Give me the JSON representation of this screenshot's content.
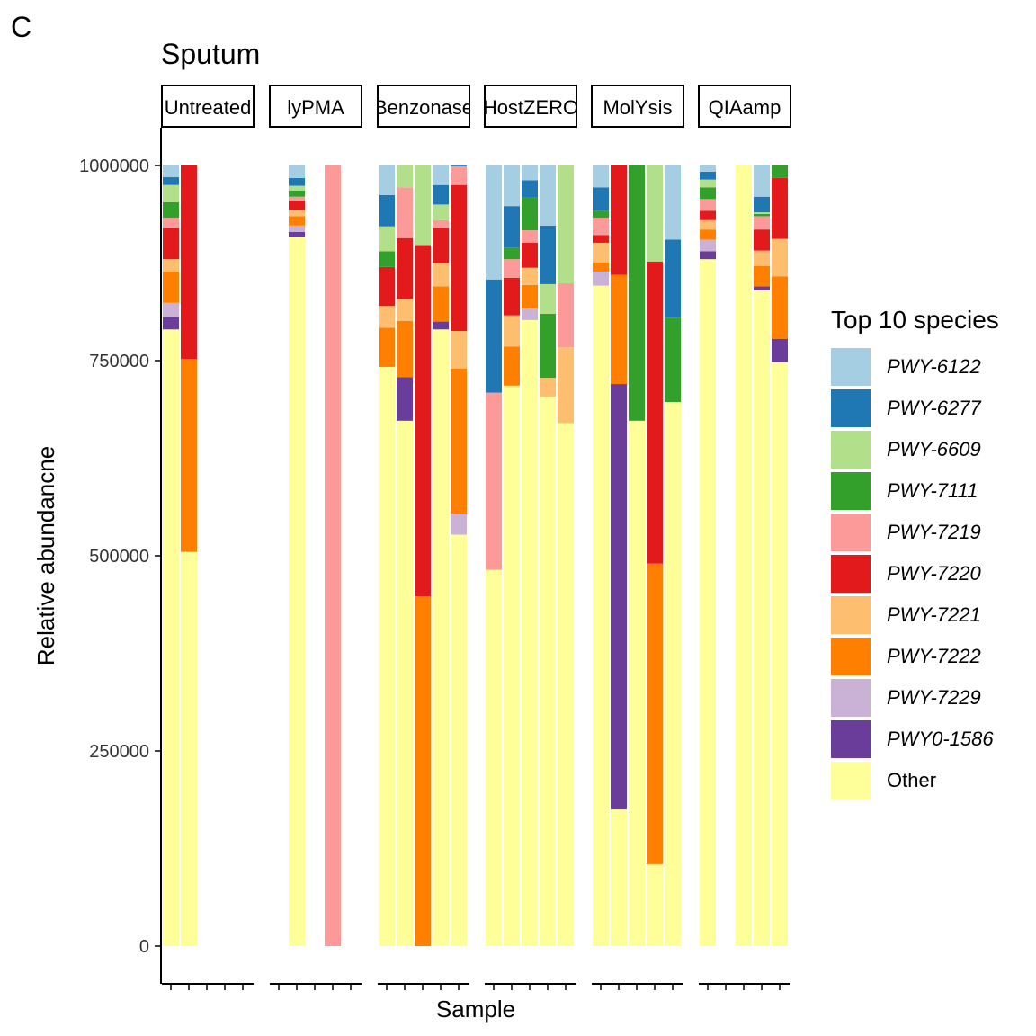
{
  "panel_tag": "C",
  "chart_data": {
    "type": "bar",
    "stacked": true,
    "title": "Sputum",
    "xlabel": "Sample",
    "ylabel": "Relative abundancne",
    "ylim": [
      0,
      1000000
    ],
    "yticks": [
      0,
      250000,
      500000,
      750000,
      1000000
    ],
    "yticklabels": [
      "0",
      "250000",
      "500000",
      "750000",
      "1000000"
    ],
    "legend": {
      "title": "Top 10 species",
      "position": "right"
    },
    "series_order": [
      "PWY-6122",
      "PWY-6277",
      "PWY-6609",
      "PWY-7111",
      "PWY-7219",
      "PWY-7220",
      "PWY-7221",
      "PWY-7222",
      "PWY-7229",
      "PWY0-1586",
      "Other"
    ],
    "colors": {
      "PWY-6122": "#A6CEE3",
      "PWY-6277": "#1F78B4",
      "PWY-6609": "#B2DF8A",
      "PWY-7111": "#33A02C",
      "PWY-7219": "#FB9A99",
      "PWY-7220": "#E31A1C",
      "PWY-7221": "#FDBF6F",
      "PWY-7222": "#FF7F00",
      "PWY-7229": "#CAB2D6",
      "PWY0-1586": "#6A3D9A",
      "Other": "#FFFF99"
    },
    "facets": [
      {
        "name": "Untreated",
        "samples": [
          {
            "Other": 790000,
            "PWY0-1586": 16000,
            "PWY-7229": 18000,
            "PWY-7222": 40000,
            "PWY-7221": 16000,
            "PWY-7220": 40000,
            "PWY-7219": 13000,
            "PWY-7111": 20000,
            "PWY-6609": 22000,
            "PWY-6277": 10000,
            "PWY-6122": 15000
          },
          {
            "Other": 505000,
            "PWY-7222": 247000,
            "PWY-7220": 248000
          },
          null,
          null,
          null
        ]
      },
      {
        "name": "lyPMA",
        "samples": [
          null,
          {
            "Other": 908000,
            "PWY0-1586": 7000,
            "PWY-7229": 8000,
            "PWY-7222": 12000,
            "PWY-7221": 8000,
            "PWY-7220": 12000,
            "PWY-7219": 5000,
            "PWY-7111": 8000,
            "PWY-6609": 6000,
            "PWY-6277": 10000,
            "PWY-6122": 16000
          },
          null,
          {
            "PWY-7219": 1000000
          },
          null
        ]
      },
      {
        "name": "Benzonase",
        "samples": [
          {
            "Other": 742000,
            "PWY-7222": 50000,
            "PWY-7221": 28000,
            "PWY-7220": 50000,
            "PWY-7111": 20000,
            "PWY-6609": 32000,
            "PWY-6277": 40000,
            "PWY-6122": 38000
          },
          {
            "Other": 673000,
            "PWY0-1586": 56000,
            "PWY-7222": 72000,
            "PWY-7221": 28000,
            "PWY-7220": 78000,
            "PWY-7219": 65000,
            "PWY-6609": 28000
          },
          {
            "PWY-7222": 448000,
            "PWY-7220": 450000,
            "PWY-6609": 102000
          },
          {
            "Other": 790000,
            "PWY0-1586": 10000,
            "PWY-7222": 45000,
            "PWY-7221": 30000,
            "PWY-7220": 45000,
            "PWY-7219": 10000,
            "PWY-6609": 20000,
            "PWY-6277": 25000,
            "PWY-6122": 25000
          },
          {
            "Other": 527000,
            "PWY-7229": 27000,
            "PWY-7222": 186000,
            "PWY-7221": 48000,
            "PWY-7220": 187000,
            "PWY-6277": 1000,
            "PWY-7219": 24000
          }
        ]
      },
      {
        "name": "HostZERO",
        "samples": [
          {
            "Other": 482000,
            "PWY-7219": 227000,
            "PWY-6277": 145000,
            "PWY-6122": 146000
          },
          {
            "Other": 718000,
            "PWY-7222": 50000,
            "PWY-7221": 40000,
            "PWY-7220": 48000,
            "PWY-7219": 24000,
            "PWY-7111": 15000,
            "PWY-6277": 53000,
            "PWY-6122": 52000
          },
          {
            "Other": 802000,
            "PWY-7229": 15000,
            "PWY-7222": 30000,
            "PWY-7221": 22000,
            "PWY-7220": 32000,
            "PWY-7219": 16000,
            "PWY-7111": 42000,
            "PWY-6277": 22000,
            "PWY-6122": 19000
          },
          {
            "Other": 704000,
            "PWY-7221": 24000,
            "PWY-7111": 82000,
            "PWY-6609": 38000,
            "PWY-6277": 75000,
            "PWY-6122": 77000
          },
          {
            "Other": 670000,
            "PWY-7221": 97000,
            "PWY-7219": 82000,
            "PWY-6609": 151000
          }
        ]
      },
      {
        "name": "MolYsis",
        "samples": [
          {
            "Other": 846000,
            "PWY-7229": 18000,
            "PWY-7222": 12000,
            "PWY-7221": 25000,
            "PWY-7220": 10000,
            "PWY-7219": 22000,
            "PWY-7111": 9000,
            "PWY-6277": 30000,
            "PWY-6122": 28000
          },
          {
            "Other": 175000,
            "PWY0-1586": 545000,
            "PWY-7222": 140000,
            "PWY-7220": 140000
          },
          {
            "Other": 673000,
            "PWY-7111": 327000
          },
          {
            "Other": 105000,
            "PWY-7222": 385000,
            "PWY-7220": 387000,
            "PWY-6609": 123000
          },
          {
            "Other": 697000,
            "PWY-7111": 108000,
            "PWY-6277": 100000,
            "PWY-6122": 95000
          }
        ]
      },
      {
        "name": "QIAamp",
        "samples": [
          {
            "Other": 880000,
            "PWY0-1586": 10000,
            "PWY-7229": 15000,
            "PWY-7222": 13000,
            "PWY-7221": 12000,
            "PWY-7220": 12000,
            "PWY-7219": 15000,
            "PWY-7111": 15000,
            "PWY-6609": 10000,
            "PWY-6277": 10000,
            "PWY-6122": 8000
          },
          null,
          {
            "Other": 1000000
          },
          {
            "Other": 840000,
            "PWY0-1586": 5000,
            "PWY-7222": 26000,
            "PWY-7221": 20000,
            "PWY-7220": 27000,
            "PWY-7219": 17000,
            "PWY-7111": 3000,
            "PWY-6609": 2000,
            "PWY-6277": 20000,
            "PWY-6122": 40000
          },
          {
            "Other": 748000,
            "PWY0-1586": 30000,
            "PWY-7222": 80000,
            "PWY-7221": 48000,
            "PWY-7220": 78000,
            "PWY-6277": 0,
            "PWY-7111": 16000
          }
        ]
      }
    ]
  }
}
